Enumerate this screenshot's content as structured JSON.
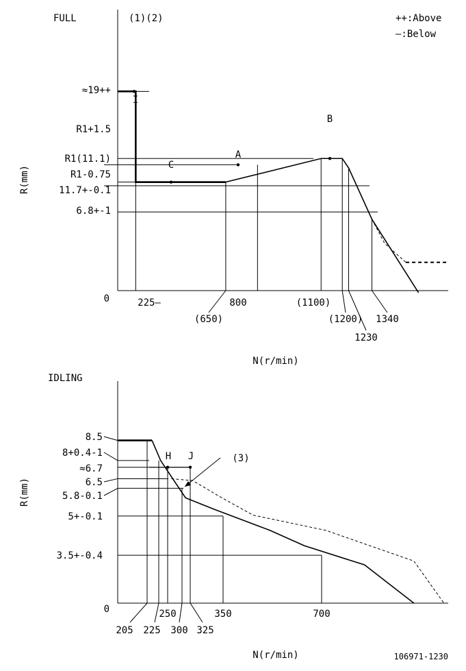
{
  "legend": {
    "above": "++:Above",
    "below": "—:Below"
  },
  "footer": {
    "code": "106971-1230"
  },
  "chart_data": [
    {
      "type": "line",
      "title": "FULL",
      "notes": "(1)(2)",
      "xlabel": "N(r/min)",
      "ylabel": "R(mm)",
      "origin_label": "0",
      "y_ticks": [
        "≈19++",
        "R1+1.5",
        "R1(11.1)",
        "R1-0.75",
        "11.7+-0.1",
        "6.8+-1"
      ],
      "x_ticks": [
        "225—",
        "(650)",
        "800",
        "(1100)",
        "(1200)",
        "1230",
        "1340"
      ],
      "points": [
        {
          "label": "I"
        },
        {
          "label": "C"
        },
        {
          "label": "A"
        },
        {
          "label": "B"
        }
      ],
      "series": [
        {
          "name": "governor curve",
          "x": [
            140,
            225,
            225,
            650,
            1100,
            1200,
            1230,
            1340,
            1560
          ],
          "y": [
            19.0,
            19.0,
            10.35,
            10.35,
            12.6,
            12.6,
            11.7,
            6.8,
            -0.2
          ]
        },
        {
          "name": "upper limit (dashed)",
          "x": [
            1340,
            1400,
            1500,
            1700
          ],
          "y": [
            6.8,
            4.5,
            2.7,
            2.7
          ]
        }
      ],
      "xlim": [
        140,
        1700
      ],
      "ylim": [
        0,
        26.8
      ]
    },
    {
      "type": "line",
      "title": "IDLING",
      "xlabel": "N(r/min)",
      "ylabel": "R(mm)",
      "origin_label": "0",
      "callout": "(3)",
      "y_ticks": [
        "8.5",
        "8+0.4-1",
        "≈6.7",
        "6.5",
        "5.8-0.1",
        "5+-0.1",
        "3.5+-0.4"
      ],
      "x_ticks": [
        "205",
        "225",
        "250",
        "300",
        "325",
        "350",
        "700"
      ],
      "points": [
        {
          "label": "H"
        },
        {
          "label": "J"
        }
      ],
      "series": [
        {
          "name": "idling curve",
          "x": [
            125,
            205,
            225,
            283,
            350,
            480,
            560,
            700,
            815
          ],
          "y": [
            8.5,
            8.5,
            7.45,
            5.5,
            4.9,
            3.8,
            3.0,
            2.0,
            0
          ]
        },
        {
          "name": "upper limit (dashed)",
          "x": [
            250,
            300,
            360,
            440,
            610,
            815,
            885
          ],
          "y": [
            6.5,
            6.4,
            5.6,
            4.6,
            3.8,
            2.2,
            0
          ]
        }
      ],
      "xlim": [
        125,
        895
      ],
      "ylim": [
        0,
        11.6
      ]
    }
  ]
}
